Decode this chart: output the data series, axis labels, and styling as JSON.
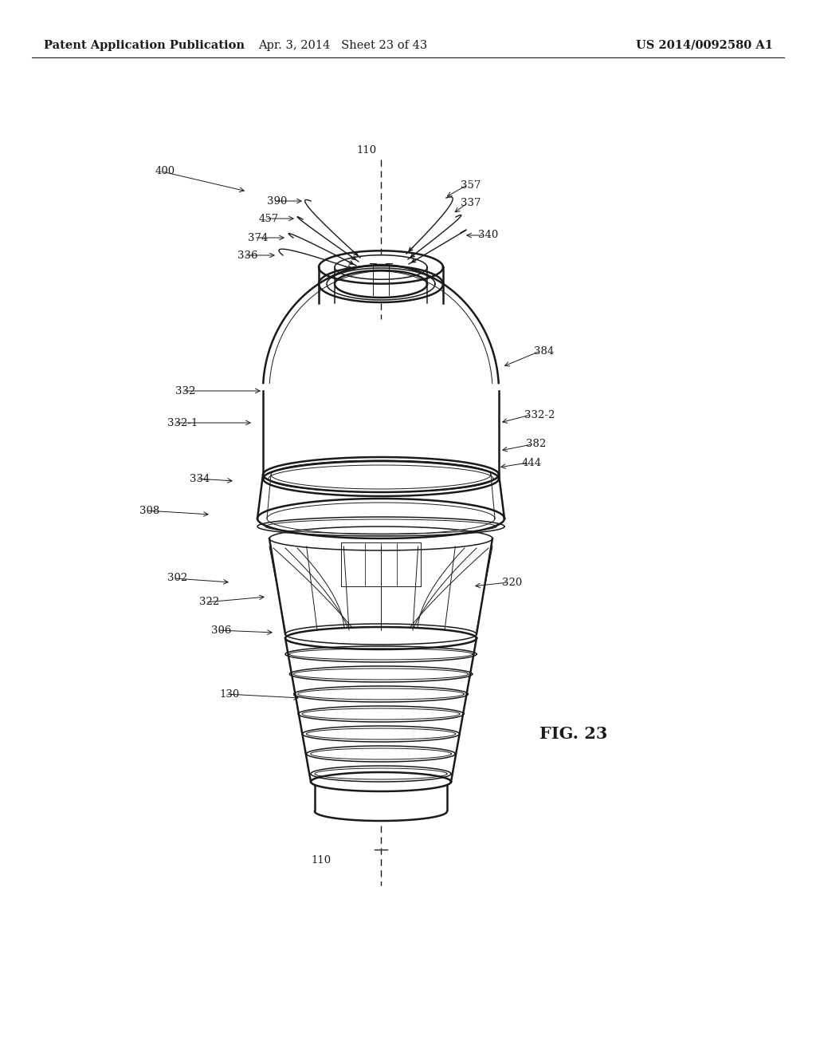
{
  "header_left": "Patent Application Publication",
  "header_center": "Apr. 3, 2014   Sheet 23 of 43",
  "header_right": "US 2014/0092580 A1",
  "fig_label": "FIG. 23",
  "background_color": "#ffffff",
  "line_color": "#1a1a1a",
  "text_color": "#1a1a1a",
  "header_fontsize": 10.5,
  "label_fontsize": 9.5,
  "fig_label_fontsize": 15
}
